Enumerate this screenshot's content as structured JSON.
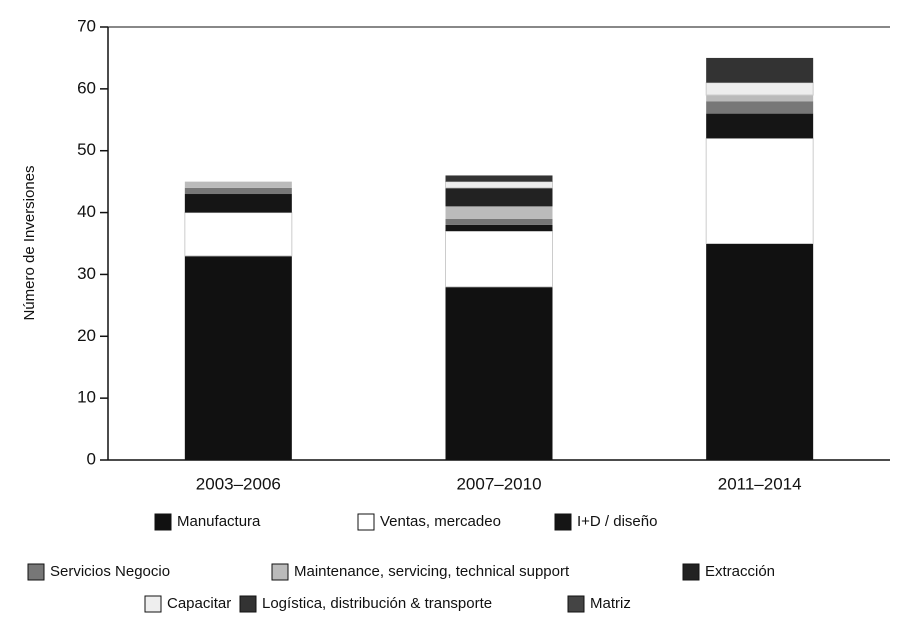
{
  "chart_data": {
    "type": "stacked_bar",
    "y_label": "Número de Inversiones",
    "categories": [
      "2003–2006",
      "2007–2010",
      "2011–2014"
    ],
    "series": [
      {
        "name": "Manufactura",
        "color": "#111111",
        "values": [
          33,
          28,
          35
        ]
      },
      {
        "name": "Ventas, mercadeo",
        "color": "#ffffff",
        "values": [
          7,
          9,
          17
        ]
      },
      {
        "name": "I+D / diseño",
        "color": "#151515",
        "values": [
          3,
          1,
          4
        ]
      },
      {
        "name": "Servicios Negocio",
        "color": "#777777",
        "values": [
          1,
          1,
          2
        ]
      },
      {
        "name": "Maintenance, servicing, technical support",
        "color": "#bbbbbb",
        "values": [
          1,
          2,
          1
        ]
      },
      {
        "name": "Extracción",
        "color": "#222222",
        "values": [
          0,
          3,
          0
        ]
      },
      {
        "name": "Capacitar",
        "color": "#eeeeee",
        "values": [
          0,
          1,
          2
        ]
      },
      {
        "name": "Logística, distribución & transporte",
        "color": "#333333",
        "values": [
          0,
          1,
          4
        ]
      },
      {
        "name": "Matriz",
        "color": "#444444",
        "values": [
          0,
          0,
          0
        ]
      }
    ],
    "ylim": [
      0,
      70
    ],
    "yticks": [
      0,
      10,
      20,
      30,
      40,
      50,
      60,
      70
    ]
  }
}
